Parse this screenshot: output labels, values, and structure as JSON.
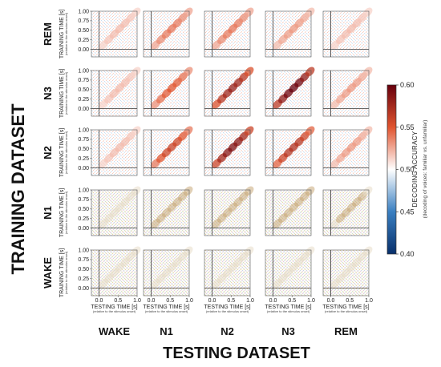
{
  "chart_data": {
    "type": "heatmap",
    "title": "",
    "y_title": "TRAINING DATASET",
    "x_title": "TESTING DATASET",
    "row_labels": [
      "REM",
      "N3",
      "N2",
      "N1",
      "WAKE"
    ],
    "col_labels": [
      "WAKE",
      "N1",
      "N2",
      "N3",
      "REM"
    ],
    "xlabel": "TESTING TIME [s]",
    "xlabel_sub": "(relative to the stimulus onset)",
    "ylabel": "TRAINING TIME [s]",
    "ylabel_sub": "(relative to the stimulus onset)",
    "x_ticks": [
      "0.0",
      "0.5",
      "1.0"
    ],
    "y_ticks": [
      "1.00",
      "0.75",
      "0.50",
      "0.25",
      "0.00"
    ],
    "xlim": [
      -0.2,
      1.0
    ],
    "ylim": [
      -0.2,
      1.0
    ],
    "colorbar": {
      "label": "DECODING ACCURACY",
      "sublabel": "(decoding of voices: familiar vs. unfamiliar)",
      "range": [
        0.4,
        0.6
      ],
      "ticks": [
        "0.60",
        "0.55",
        "0.50",
        "0.45",
        "0.40"
      ],
      "colors": [
        "#08306b",
        "#3a7fc1",
        "#ffffff",
        "#e0542f",
        "#67000d"
      ]
    },
    "peak_accuracy": [
      [
        0.52,
        0.54,
        0.54,
        0.53,
        0.52
      ],
      [
        0.52,
        0.55,
        0.58,
        0.6,
        0.53
      ],
      [
        0.52,
        0.56,
        0.59,
        0.57,
        0.53
      ],
      [
        0.51,
        0.54,
        0.54,
        0.53,
        0.52
      ],
      [
        0.51,
        0.51,
        0.51,
        0.51,
        0.51
      ]
    ],
    "masked_rows": [
      "N1",
      "WAKE"
    ]
  }
}
